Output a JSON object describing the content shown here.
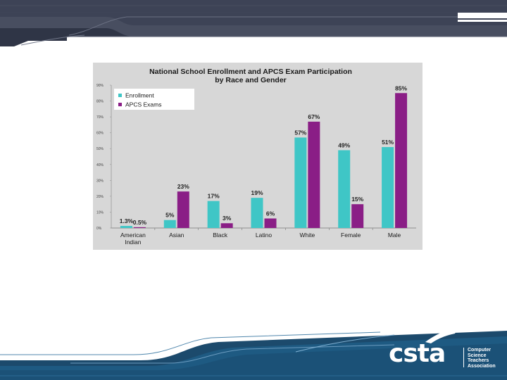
{
  "chart_data": {
    "type": "bar",
    "title_lines": [
      "National School Enrollment and APCS Exam Participation",
      "by Race and Gender"
    ],
    "categories": [
      "American Indian",
      "Asian",
      "Black",
      "Latino",
      "White",
      "Female",
      "Male"
    ],
    "category_lines": [
      [
        "American",
        "Indian"
      ],
      [
        "Asian"
      ],
      [
        "Black"
      ],
      [
        "Latino"
      ],
      [
        "White"
      ],
      [
        "Female"
      ],
      [
        "Male"
      ]
    ],
    "series": [
      {
        "name": "Enrollment",
        "color": "#3fc6c6",
        "values": [
          1.3,
          5,
          17,
          19,
          57,
          49,
          51
        ],
        "labels": [
          "1.3%",
          "5%",
          "17%",
          "19%",
          "57%",
          "49%",
          "51%"
        ]
      },
      {
        "name": "APCS Exams",
        "color": "#8a1e86",
        "values": [
          0.5,
          23,
          3,
          6,
          67,
          15,
          85
        ],
        "labels": [
          "0.5%",
          "23%",
          "3%",
          "6%",
          "67%",
          "15%",
          "85%"
        ]
      }
    ],
    "ylim": [
      0,
      90
    ],
    "yticks": [
      "0%",
      "10%",
      "20%",
      "30%",
      "40%",
      "50%",
      "60%",
      "70%",
      "80%",
      "90%"
    ],
    "legend_position": "top-left",
    "grid": false
  },
  "logo": {
    "word": "csta",
    "tagline": [
      "Computer",
      "Science",
      "Teachers",
      "Association"
    ]
  }
}
